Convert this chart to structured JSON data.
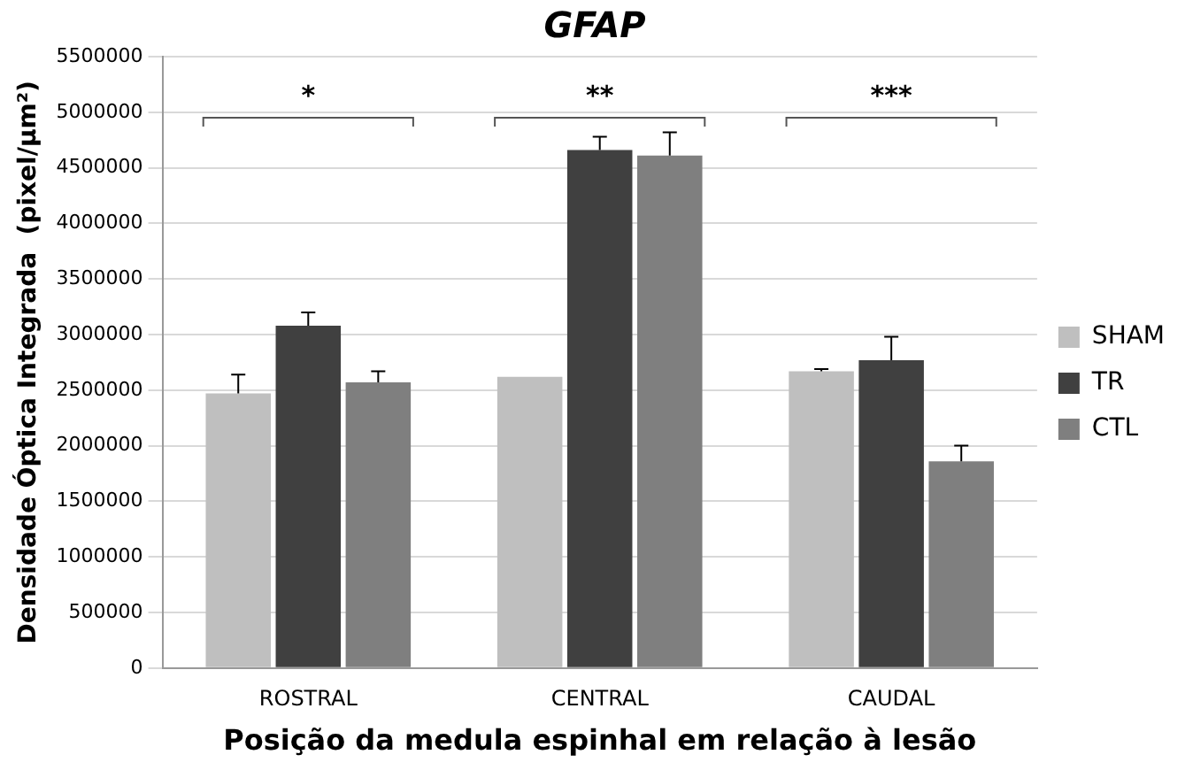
{
  "chart_data": {
    "type": "bar",
    "title": "GFAP",
    "xlabel": "Posição da medula espinhal em relação à lesão",
    "ylabel": "Densidade Óptica Integrada  (pixel/µm²)",
    "categories": [
      "ROSTRAL",
      "CENTRAL",
      "CAUDAL"
    ],
    "series": [
      {
        "name": "SHAM",
        "color": "#bfbfbf",
        "values": [
          2470000,
          2620000,
          2670000
        ],
        "errors": [
          170000,
          null,
          20000
        ]
      },
      {
        "name": "TR",
        "color": "#404040",
        "values": [
          3080000,
          4660000,
          2770000
        ],
        "errors": [
          120000,
          120000,
          210000
        ]
      },
      {
        "name": "CTL",
        "color": "#7f7f7f",
        "values": [
          2570000,
          4610000,
          1860000
        ],
        "errors": [
          100000,
          210000,
          140000
        ]
      }
    ],
    "ylim": [
      0,
      5500000
    ],
    "yticks": [
      0,
      500000,
      1000000,
      1500000,
      2000000,
      2500000,
      3000000,
      3500000,
      4000000,
      4500000,
      5000000,
      5500000
    ],
    "grid": "y",
    "legend": "right",
    "annotations": [
      "*",
      "**",
      "***"
    ]
  }
}
